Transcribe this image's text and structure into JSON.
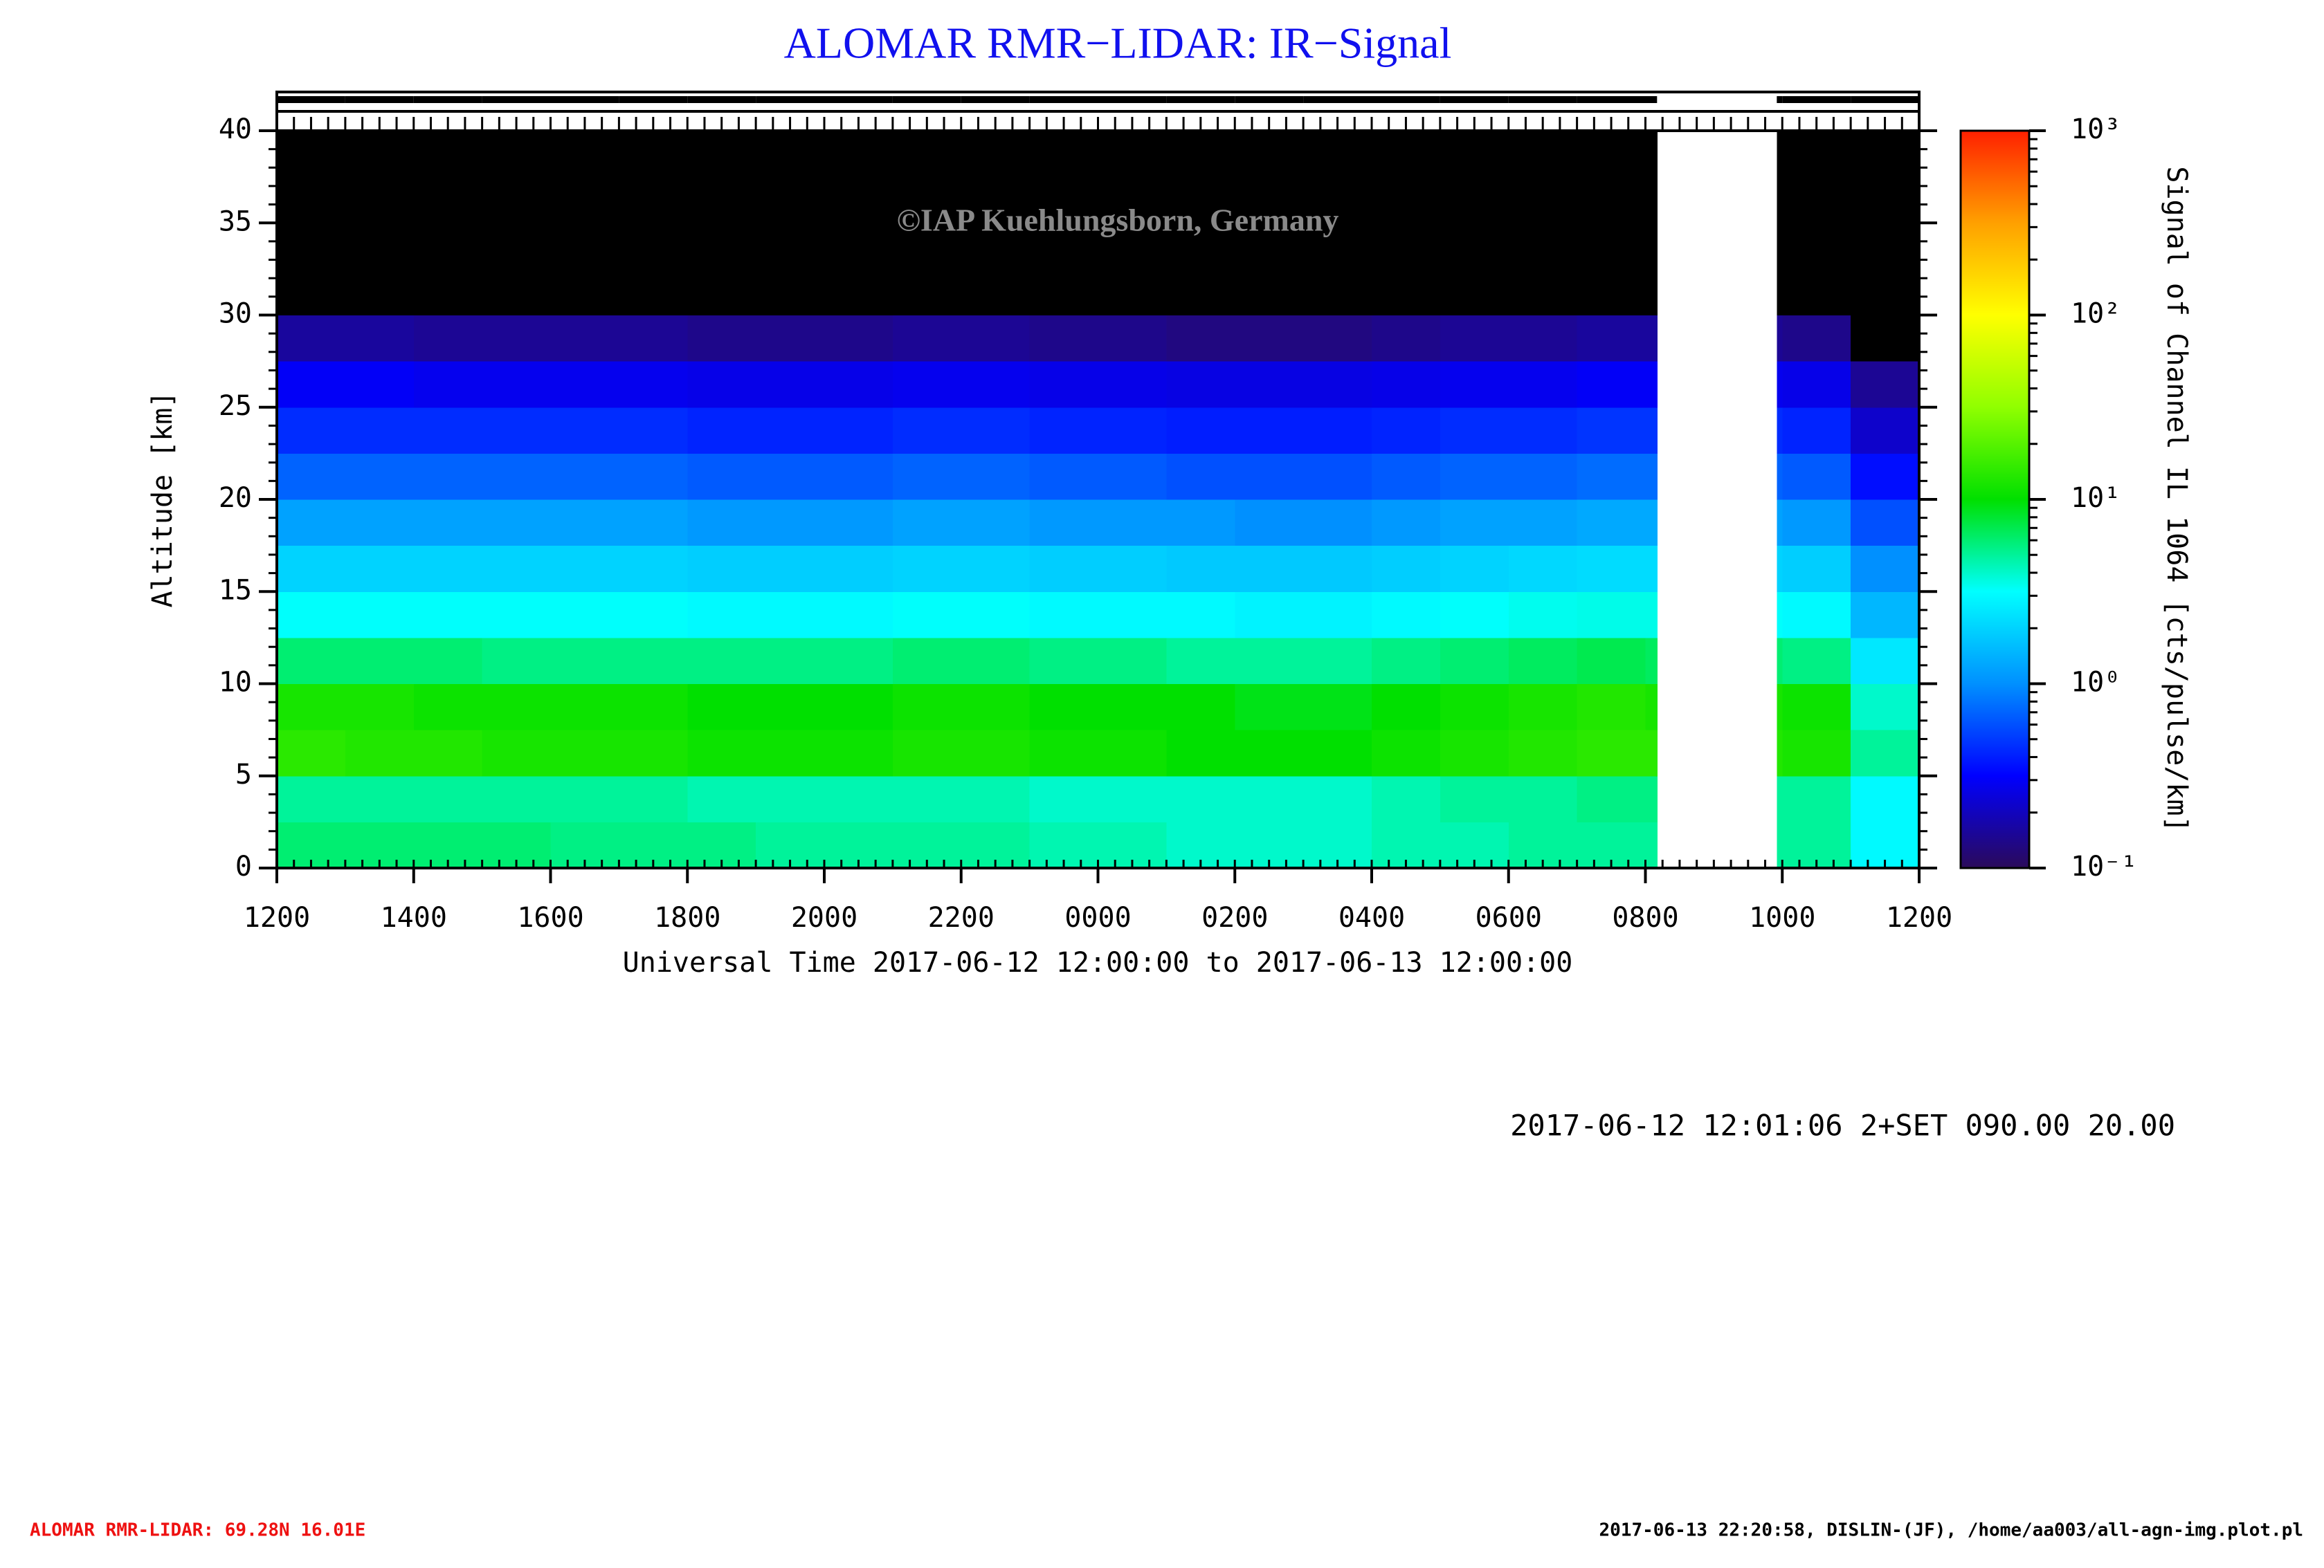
{
  "chart_data": {
    "type": "heatmap",
    "title": "ALOMAR RMR−LIDAR: IR−Signal",
    "watermark": "©IAP Kuehlungsborn, Germany",
    "xlabel": "Universal Time 2017-06-12 12:00:00 to 2017-06-13 12:00:00",
    "ylabel": "Altitude [km]",
    "colorbar_label": "Signal of Channel IL 1064 [cts/pulse/km]",
    "info": "2017-06-12 12:01:06 2+SET 090.00 20.00",
    "footer_left": "ALOMAR RMR-LIDAR: 69.28N 16.01E",
    "footer_right": "2017-06-13 22:20:58, DISLIN-(JF), /home/aa003/all-agn-img.plot.pl",
    "xlim": [
      0,
      24
    ],
    "xticks": [
      {
        "value": 0,
        "label": "1200"
      },
      {
        "value": 2,
        "label": "1400"
      },
      {
        "value": 4,
        "label": "1600"
      },
      {
        "value": 6,
        "label": "1800"
      },
      {
        "value": 8,
        "label": "2000"
      },
      {
        "value": 10,
        "label": "2200"
      },
      {
        "value": 12,
        "label": "0000"
      },
      {
        "value": 14,
        "label": "0200"
      },
      {
        "value": 16,
        "label": "0400"
      },
      {
        "value": 18,
        "label": "0600"
      },
      {
        "value": 20,
        "label": "0800"
      },
      {
        "value": 22,
        "label": "1000"
      },
      {
        "value": 24,
        "label": "1200"
      }
    ],
    "x_minor_step": 0.25,
    "ylim": [
      0,
      40
    ],
    "yticks": [
      0,
      5,
      10,
      15,
      20,
      25,
      30,
      35,
      40
    ],
    "y_minor_step": 1,
    "clim": [
      0.1,
      1000
    ],
    "log_color_scale": true,
    "cticks": [
      {
        "value": 0.1,
        "label": "10⁻¹"
      },
      {
        "value": 1,
        "label": "10⁰"
      },
      {
        "value": 10,
        "label": "10¹"
      },
      {
        "value": 100,
        "label": "10²"
      },
      {
        "value": 1000,
        "label": "10³"
      }
    ],
    "colormap": [
      "#2b0a5a",
      "#0000ff",
      "#0090ff",
      "#00ffff",
      "#00e000",
      "#90ff00",
      "#ffff00",
      "#ffa000",
      "#ff2000"
    ],
    "under_color": "#000000",
    "x_edges": [
      0,
      1,
      2,
      3,
      4,
      5,
      6,
      7,
      8,
      9,
      10,
      11,
      12,
      13,
      14,
      15,
      16,
      17,
      18,
      19,
      20,
      20.17,
      21.92,
      22,
      23,
      24
    ],
    "y_edges": [
      0,
      2.5,
      5,
      7.5,
      10,
      12.5,
      15,
      17.5,
      20,
      22.5,
      25,
      27.5,
      30,
      32.5,
      35,
      37.5,
      40
    ],
    "z": [
      [
        6,
        6,
        6,
        6,
        5.5,
        5.5,
        5.5,
        5,
        5,
        5,
        5,
        4.5,
        4.5,
        4,
        4,
        4,
        4.5,
        4.5,
        5,
        5,
        5,
        null,
        5,
        5,
        3
      ],
      [
        5,
        5,
        5,
        5,
        5,
        5,
        4.5,
        4.5,
        4.5,
        4.5,
        4.5,
        4,
        4,
        4,
        4,
        4,
        4.5,
        5,
        5,
        5.5,
        5.5,
        null,
        5,
        5,
        3
      ],
      [
        14,
        13,
        13,
        12,
        12,
        12,
        11,
        11,
        11,
        12,
        12,
        11,
        11,
        10,
        10,
        10,
        11,
        12,
        13,
        14,
        14,
        null,
        13,
        12,
        5
      ],
      [
        12,
        12,
        11,
        11,
        11,
        11,
        10,
        10,
        10,
        11,
        11,
        10,
        10,
        10,
        9,
        9,
        10,
        11,
        12,
        13,
        12,
        null,
        12,
        11,
        4
      ],
      [
        6,
        6,
        6,
        5.5,
        5.5,
        5.5,
        5.5,
        5.5,
        5.5,
        6,
        6,
        5.5,
        5.5,
        5,
        5,
        5,
        5.5,
        6,
        6.5,
        7,
        6.5,
        null,
        6,
        5.5,
        2.5
      ],
      [
        3.2,
        3.2,
        3.2,
        3.2,
        3.2,
        3.2,
        3,
        3,
        3,
        3.2,
        3.2,
        3,
        3,
        3,
        2.8,
        2.8,
        3,
        3.2,
        3.4,
        3.5,
        3.5,
        null,
        3.2,
        3,
        1.5
      ],
      [
        2,
        2,
        2,
        2,
        2,
        2,
        1.9,
        1.9,
        1.9,
        2,
        2,
        1.9,
        1.9,
        1.8,
        1.8,
        1.8,
        1.9,
        2,
        2.1,
        2.2,
        2.2,
        null,
        2,
        1.9,
        1
      ],
      [
        1.2,
        1.2,
        1.2,
        1.2,
        1.2,
        1.2,
        1.1,
        1.1,
        1.1,
        1.2,
        1.2,
        1.1,
        1.1,
        1.1,
        1,
        1,
        1.1,
        1.2,
        1.2,
        1.3,
        1.3,
        null,
        1.2,
        1.1,
        0.6
      ],
      [
        0.7,
        0.7,
        0.7,
        0.7,
        0.7,
        0.7,
        0.65,
        0.65,
        0.65,
        0.7,
        0.7,
        0.65,
        0.65,
        0.6,
        0.6,
        0.6,
        0.65,
        0.7,
        0.7,
        0.75,
        0.75,
        null,
        0.7,
        0.65,
        0.35
      ],
      [
        0.45,
        0.45,
        0.45,
        0.45,
        0.45,
        0.45,
        0.42,
        0.42,
        0.42,
        0.45,
        0.45,
        0.42,
        0.42,
        0.4,
        0.4,
        0.4,
        0.42,
        0.45,
        0.45,
        0.48,
        0.48,
        null,
        0.45,
        0.42,
        0.22
      ],
      [
        0.3,
        0.3,
        0.28,
        0.28,
        0.28,
        0.28,
        0.27,
        0.27,
        0.27,
        0.28,
        0.28,
        0.27,
        0.27,
        0.26,
        0.26,
        0.26,
        0.27,
        0.28,
        0.28,
        0.3,
        0.3,
        null,
        0.28,
        0.27,
        0.15
      ],
      [
        0.16,
        0.16,
        0.15,
        0.15,
        0.15,
        0.15,
        0.14,
        0.14,
        0.14,
        0.15,
        0.15,
        0.14,
        0.14,
        0.13,
        0.13,
        0.13,
        0.14,
        0.15,
        0.15,
        0.16,
        0.16,
        null,
        0.15,
        0.14,
        0.09
      ],
      [
        0.09,
        0.09,
        0.08,
        0.08,
        0.08,
        0.08,
        0.08,
        0.08,
        0.08,
        0.08,
        0.08,
        0.08,
        0.08,
        0.08,
        0.08,
        0.08,
        0.08,
        0.08,
        0.08,
        0.09,
        0.09,
        null,
        0.08,
        0.08,
        0.06
      ],
      [
        0.05,
        0.05,
        0.05,
        0.05,
        0.05,
        0.05,
        0.05,
        0.05,
        0.05,
        0.05,
        0.05,
        0.05,
        0.05,
        0.05,
        0.05,
        0.05,
        0.05,
        0.05,
        0.05,
        0.05,
        0.05,
        null,
        0.05,
        0.05,
        0.05
      ],
      [
        0.05,
        0.05,
        0.05,
        0.05,
        0.05,
        0.05,
        0.05,
        0.05,
        0.05,
        0.05,
        0.05,
        0.05,
        0.05,
        0.05,
        0.05,
        0.05,
        0.05,
        0.05,
        0.05,
        0.05,
        0.05,
        null,
        0.05,
        0.05,
        0.05
      ],
      [
        0.05,
        0.05,
        0.05,
        0.05,
        0.05,
        0.05,
        0.05,
        0.05,
        0.05,
        0.05,
        0.05,
        0.05,
        0.05,
        0.05,
        0.05,
        0.05,
        0.05,
        0.05,
        0.05,
        0.05,
        0.05,
        null,
        0.05,
        0.05,
        0.05
      ]
    ]
  }
}
